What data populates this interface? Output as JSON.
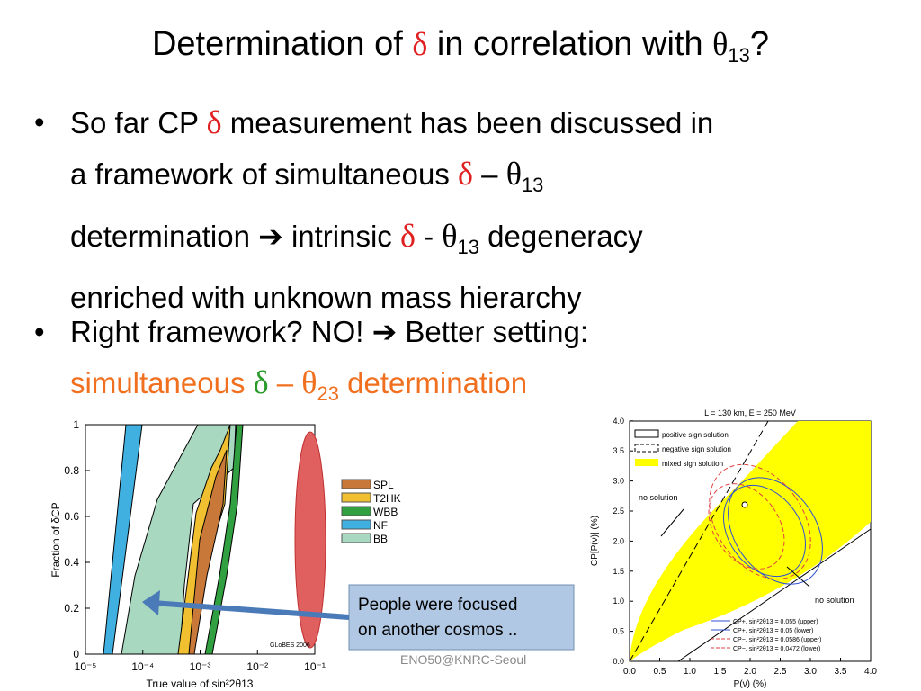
{
  "slide": {
    "title": [
      {
        "text": "Determination of "
      },
      {
        "text": "δ",
        "color": "#e02020",
        "font": "serif"
      },
      {
        "text": " in correlation with "
      },
      {
        "text": "θ",
        "font": "serif"
      },
      {
        "text": "13",
        "sub": true
      },
      {
        "text": "?"
      }
    ],
    "bullets": [
      {
        "lines": [
          [
            {
              "text": "So far CP "
            },
            {
              "text": "δ",
              "color": "#e02020",
              "font": "serif"
            },
            {
              "text": " measurement has been discussed in"
            }
          ],
          [
            {
              "text": "a framework of simultaneous "
            },
            {
              "text": "δ",
              "color": "#e02020",
              "font": "serif"
            },
            {
              "text": " – "
            },
            {
              "text": "θ",
              "font": "serif"
            },
            {
              "text": "13",
              "sub": true
            }
          ],
          [
            {
              "text": "determination "
            },
            {
              "text": "➔"
            },
            {
              "text": " intrinsic "
            },
            {
              "text": "δ",
              "color": "#e02020",
              "font": "serif"
            },
            {
              "text": " - "
            },
            {
              "text": "θ",
              "font": "serif"
            },
            {
              "text": "13",
              "sub": true
            },
            {
              "text": " degeneracy"
            }
          ],
          [
            {
              "text": "enriched with unknown mass hierarchy"
            }
          ]
        ]
      },
      {
        "lines": [
          [
            {
              "text": "Right framework? NO! "
            },
            {
              "text": "➔"
            },
            {
              "text": " Better setting:"
            }
          ],
          [
            {
              "text": "simultaneous ",
              "color": "#f07020"
            },
            {
              "text": "δ",
              "color": "#2a9a2a",
              "font": "serif"
            },
            {
              "text": " – ",
              "color": "#f07020"
            },
            {
              "text": "θ",
              "color": "#f07020",
              "font": "serif"
            },
            {
              "text": "23",
              "sub": true,
              "color": "#f07020"
            },
            {
              "text": " determination",
              "color": "#f07020"
            }
          ]
        ]
      }
    ],
    "left_plot": {
      "yticks": [
        "0",
        "0.2",
        "0.4",
        "0.6",
        "0.8",
        "1"
      ],
      "xticks": [
        "10⁻⁵",
        "10⁻⁴",
        "10⁻³",
        "10⁻²",
        "10⁻¹"
      ],
      "ylabel": "Fraction of δCP",
      "xlabel": "True value of sin²2θ13",
      "credit": "GLoBES 2006",
      "legend": [
        {
          "name": "SPL",
          "color": "#c87838"
        },
        {
          "name": "T2HK",
          "color": "#f0c030"
        },
        {
          "name": "WBB",
          "color": "#30a040"
        },
        {
          "name": "NF",
          "color": "#40b0e0"
        },
        {
          "name": "BB",
          "color": "#a8d8c0"
        }
      ]
    },
    "callout": [
      "People were focused",
      "on another cosmos .."
    ],
    "footer": "ENO50@KNRC-Seoul",
    "right_plot": {
      "title": "L = 130 km, E = 250 MeV",
      "yticks": [
        "0.0",
        "0.5",
        "1.0",
        "1.5",
        "2.0",
        "2.5",
        "3.0",
        "3.5",
        "4.0"
      ],
      "xticks": [
        "0.0",
        "0.5",
        "1.0",
        "1.5",
        "2.0",
        "2.5",
        "3.0",
        "3.5",
        "4.0"
      ],
      "ylabel": "CP[P(ν)] (%)",
      "xlabel": "P(ν)  (%)",
      "legend": [
        "positive sign solution",
        "negative sign solution",
        "mixed sign solution"
      ],
      "annotations": [
        "no solution",
        "no solution"
      ],
      "curves": [
        "CP+, sin²2θ13 = 0.055 (upper)",
        "CP+, sin²2θ13 = 0.05 (lower)",
        "CP−, sin²2θ13 = 0.0586 (upper)",
        "CP−, sin²2θ13 = 0.0472 (lower)"
      ]
    }
  }
}
